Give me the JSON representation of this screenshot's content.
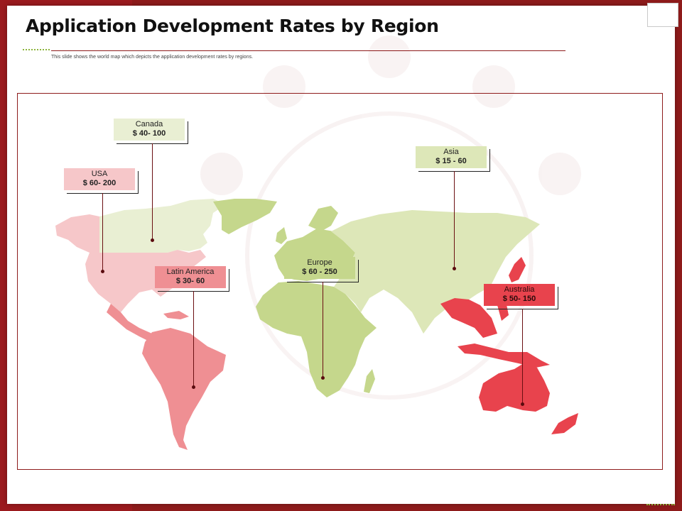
{
  "title": "Application Development Rates by Region",
  "subtitle": "This slide shows the world  map which depicts the application development  rates by regions.",
  "colors": {
    "brand_red": "#9b1a1e",
    "accent_green": "#8db43c",
    "usa": "#f6c7c9",
    "canada": "#e9efd3",
    "latin_america": "#ef8f93",
    "europe_africa": "#c5d78c",
    "asia": "#dde7b8",
    "australia": "#e8434d"
  },
  "regions": [
    {
      "id": "canada",
      "name": "Canada",
      "value": "$ 40- 100",
      "color": "#e9efd3"
    },
    {
      "id": "usa",
      "name": "USA",
      "value": "$ 60- 200",
      "color": "#f6c7c9"
    },
    {
      "id": "latin",
      "name": "Latin America",
      "value": "$ 30- 60",
      "color": "#ef8f93"
    },
    {
      "id": "europe",
      "name": "Europe",
      "value": "$ 60 - 250",
      "color": "#c5d78c"
    },
    {
      "id": "asia",
      "name": "Asia",
      "value": "$ 15 - 60",
      "color": "#dde7b8"
    },
    {
      "id": "australia",
      "name": "Australia",
      "value": "$ 50- 150",
      "color": "#e8434d"
    }
  ]
}
